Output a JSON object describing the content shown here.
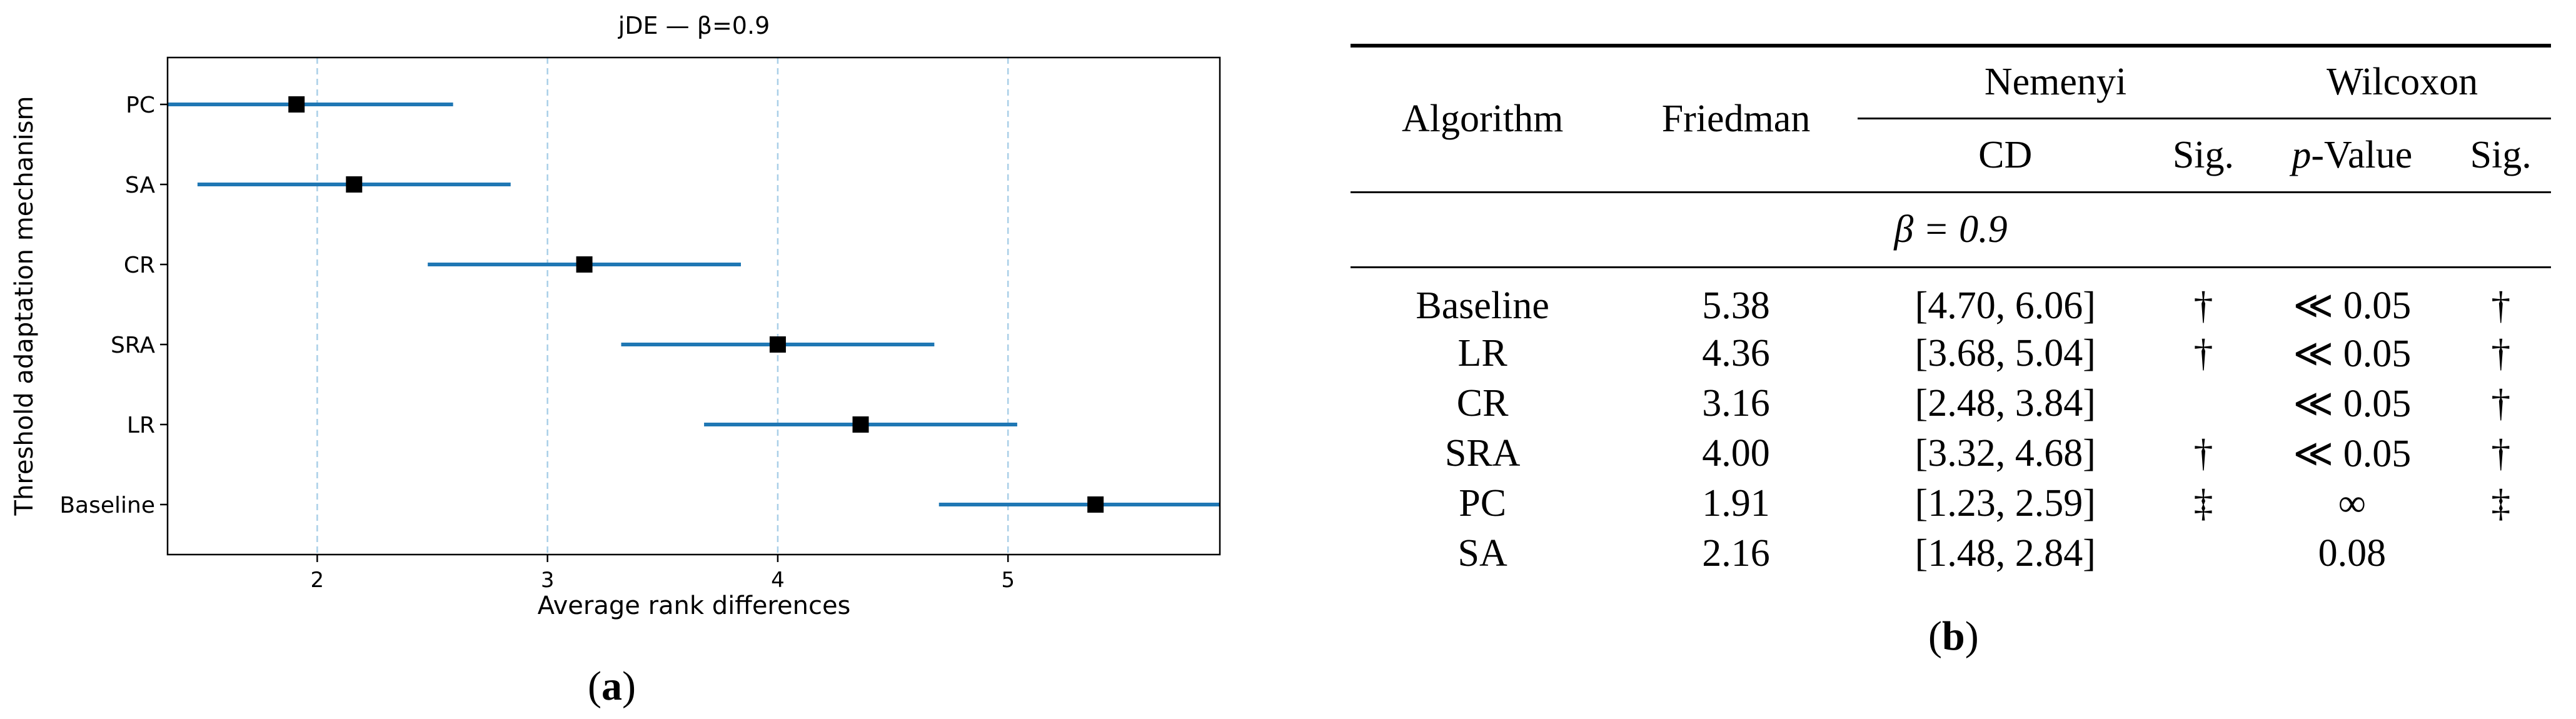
{
  "panel_a": {
    "caption_letter": "a",
    "chart_data": {
      "type": "errorbar",
      "title": "jDE — β=0.9",
      "xlabel": "Average rank differences",
      "ylabel": "Threshold adaptation mechanism",
      "categories": [
        "PC",
        "SA",
        "CR",
        "SRA",
        "LR",
        "Baseline"
      ],
      "values": [
        1.91,
        2.16,
        3.16,
        4.0,
        4.36,
        5.38
      ],
      "intervals": [
        [
          1.23,
          2.59
        ],
        [
          1.48,
          2.84
        ],
        [
          2.48,
          3.84
        ],
        [
          3.32,
          4.68
        ],
        [
          3.68,
          5.04
        ],
        [
          4.7,
          6.06
        ]
      ],
      "xlim": [
        1.35,
        5.92
      ],
      "xticks": [
        "2",
        "3",
        "4",
        "5"
      ],
      "xtick_values": [
        2,
        3,
        4,
        5
      ],
      "grid": "vertical dashed",
      "colors": {
        "interval": "#1f77b4",
        "marker": "#000000",
        "grid": "#a9cfe8"
      }
    }
  },
  "panel_b": {
    "caption_letter": "b",
    "headers": {
      "algorithm": "Algorithm",
      "friedman": "Friedman",
      "nemenyi": "Nemenyi",
      "wilcoxon": "Wilcoxon",
      "cd": "CD",
      "sig": "Sig.",
      "p_italic": "p",
      "p_rest": "-Value",
      "sig2": "Sig."
    },
    "section_label": "β = 0.9",
    "rows": [
      {
        "algorithm": "Baseline",
        "friedman": "5.38",
        "cd": "[4.70, 6.06]",
        "nem_sig": "†",
        "p_value": "≪ 0.05",
        "wil_sig": "†"
      },
      {
        "algorithm": "LR",
        "friedman": "4.36",
        "cd": "[3.68, 5.04]",
        "nem_sig": "†",
        "p_value": "≪ 0.05",
        "wil_sig": "†"
      },
      {
        "algorithm": "CR",
        "friedman": "3.16",
        "cd": "[2.48, 3.84]",
        "nem_sig": "",
        "p_value": "≪ 0.05",
        "wil_sig": "†"
      },
      {
        "algorithm": "SRA",
        "friedman": "4.00",
        "cd": "[3.32, 4.68]",
        "nem_sig": "†",
        "p_value": "≪ 0.05",
        "wil_sig": "†"
      },
      {
        "algorithm": "PC",
        "friedman": "1.91",
        "cd": "[1.23, 2.59]",
        "nem_sig": "‡",
        "p_value": "∞",
        "wil_sig": "‡"
      },
      {
        "algorithm": "SA",
        "friedman": "2.16",
        "cd": "[1.48, 2.84]",
        "nem_sig": "",
        "p_value": "0.08",
        "wil_sig": ""
      }
    ]
  }
}
